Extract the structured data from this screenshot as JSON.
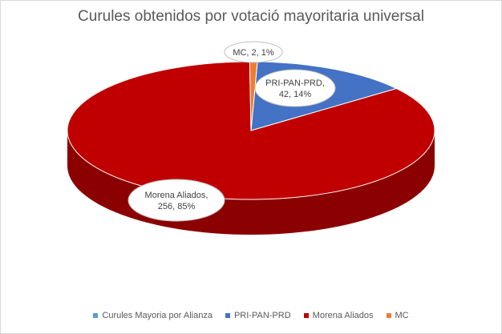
{
  "chart_data": {
    "type": "pie",
    "title": "Curules obtenidos por votació mayoritaria universal",
    "series_name": "Curules Mayoria por Alianza",
    "slices": [
      {
        "name": "PRI-PAN-PRD",
        "value": 42,
        "percent": "14%",
        "label": "PRI-PAN-PRD,\n42, 14%",
        "color": "#4472C4",
        "side": "#2F5597"
      },
      {
        "name": "Morena Aliados",
        "value": 256,
        "percent": "85%",
        "label": "Morena Aliados,\n256, 85%",
        "color": "#C00000",
        "side": "#8B0000"
      },
      {
        "name": "MC",
        "value": 2,
        "percent": "1%",
        "label": "MC, 2, 1%",
        "color": "#ED7D31",
        "side": "#B85E20"
      }
    ],
    "legend": [
      {
        "label": "Curules Mayoria por Alianza",
        "color": "#5B9BD5"
      },
      {
        "label": "PRI-PAN-PRD",
        "color": "#4472C4"
      },
      {
        "label": "Morena Aliados",
        "color": "#C00000"
      },
      {
        "label": "MC",
        "color": "#ED7D31"
      }
    ],
    "legend_position": "bottom",
    "style": "3d"
  }
}
